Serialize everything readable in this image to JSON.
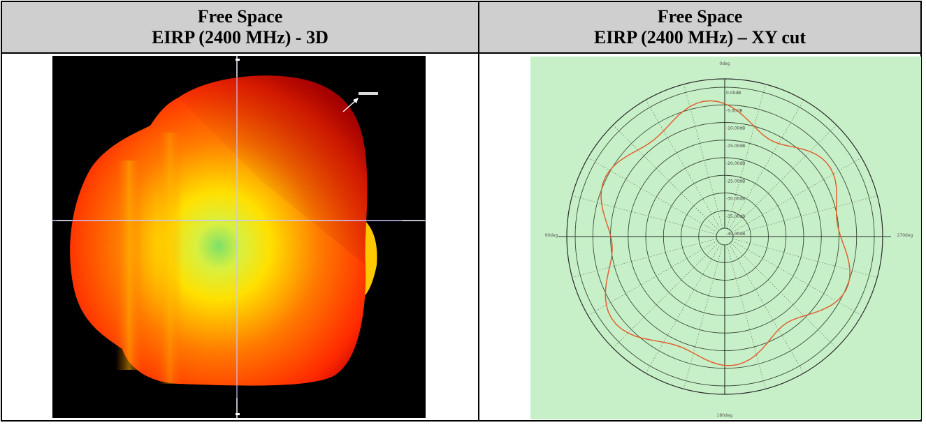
{
  "headers": {
    "left": {
      "line1": "Free Space",
      "line2": "EIRP (2400 MHz) - 3D"
    },
    "right": {
      "line1": "Free Space",
      "line2": "EIRP (2400 MHz) – XY cut"
    }
  },
  "plot3d": {
    "background": "#000000",
    "colors": {
      "outer": "#ff1c00",
      "mid": "#ff7a00",
      "inner": "#ffe000",
      "center": "#7ee06a"
    }
  },
  "polar": {
    "background": "#c8f0c8",
    "trace_color": "#e06030",
    "angle_labels": {
      "top": "0deg",
      "left": "90deg",
      "right": "270deg",
      "bottom": "180deg"
    },
    "ring_labels": [
      "0.00dB",
      "-5.00dB",
      "-10.00dB",
      "-15.00dB",
      "-20.00dB",
      "-25.00dB",
      "-30.00dB",
      "-35.00dB",
      "-40.00dB"
    ]
  }
}
